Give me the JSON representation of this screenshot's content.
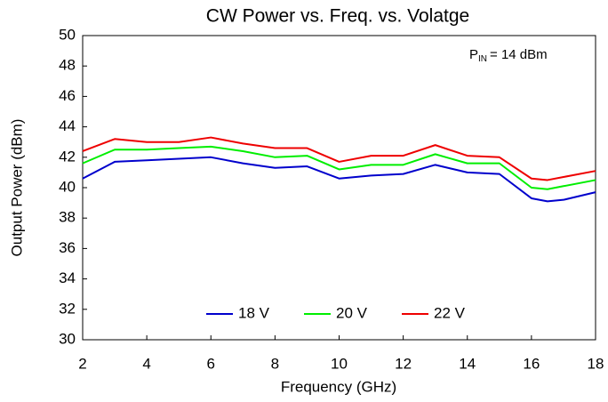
{
  "chart_data": {
    "type": "line",
    "title": "CW Power vs. Freq. vs. Volatge",
    "x_label": "Frequency (GHz)",
    "y_label": "Output Power (dBm)",
    "annotation": {
      "symbol": "P",
      "subscript": "IN",
      "text": "= 14 dBm"
    },
    "x": [
      2,
      3,
      4,
      5,
      6,
      7,
      8,
      9,
      10,
      11,
      12,
      13,
      14,
      15,
      16,
      16.5,
      17,
      18
    ],
    "series": [
      {
        "name": "18 V",
        "color": "#0000cc",
        "values": [
          40.6,
          41.7,
          41.8,
          41.9,
          42.0,
          41.6,
          41.3,
          41.4,
          40.6,
          40.8,
          40.9,
          41.5,
          41.0,
          40.9,
          39.3,
          39.1,
          39.2,
          39.7
        ]
      },
      {
        "name": "20 V",
        "color": "#00ee00",
        "values": [
          41.6,
          42.5,
          42.5,
          42.6,
          42.7,
          42.4,
          42.0,
          42.1,
          41.2,
          41.5,
          41.5,
          42.2,
          41.6,
          41.6,
          40.0,
          39.9,
          40.1,
          40.5
        ]
      },
      {
        "name": "22 V",
        "color": "#ee0000",
        "values": [
          42.4,
          43.2,
          43.0,
          43.0,
          43.3,
          42.9,
          42.6,
          42.6,
          41.7,
          42.1,
          42.1,
          42.8,
          42.1,
          42.0,
          40.6,
          40.5,
          40.7,
          41.1
        ]
      }
    ],
    "xlim": [
      2,
      18
    ],
    "xticks": [
      2,
      4,
      6,
      8,
      10,
      12,
      14,
      16,
      18
    ],
    "ylim": [
      30,
      50
    ],
    "yticks": [
      30,
      32,
      34,
      36,
      38,
      40,
      42,
      44,
      46,
      48,
      50
    ],
    "grid": false,
    "legend": "bottom"
  }
}
